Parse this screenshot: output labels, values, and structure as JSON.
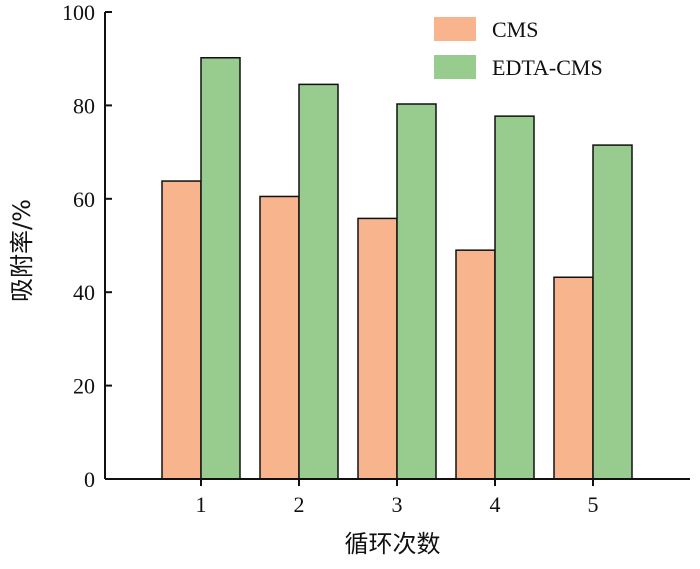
{
  "chart_data": {
    "type": "bar",
    "title": "",
    "xlabel": "循环次数",
    "ylabel": "吸附率/%",
    "categories": [
      "1",
      "2",
      "3",
      "4",
      "5"
    ],
    "series": [
      {
        "name": "CMS",
        "values": [
          63.8,
          60.5,
          55.8,
          49.0,
          43.2
        ],
        "color": "#F8B48C"
      },
      {
        "name": "EDTA-CMS",
        "values": [
          90.2,
          84.5,
          80.3,
          77.7,
          71.5
        ],
        "color": "#98CB8E"
      }
    ],
    "ylim": [
      0,
      100
    ],
    "yticks": [
      "0",
      "20",
      "40",
      "60",
      "80",
      "100"
    ],
    "legend_position": "top-right",
    "grid": false
  }
}
